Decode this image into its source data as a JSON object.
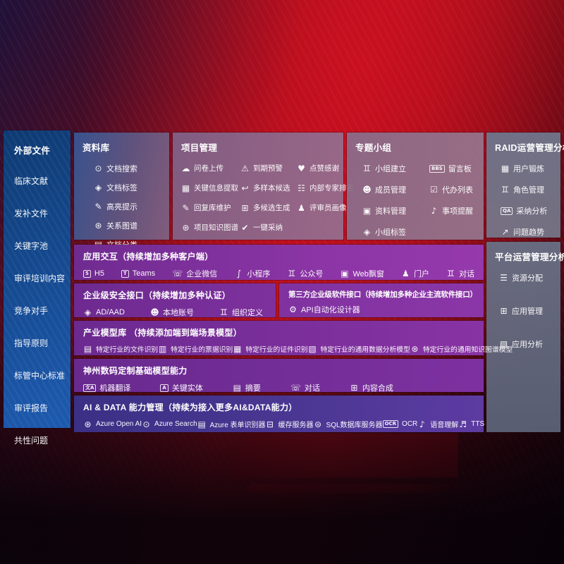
{
  "colors": {
    "background_red": "#b50e1c",
    "sidebar_blue": "#154a90",
    "panel_mauve": "#8a6f8e",
    "panel_slate": "#6e7689",
    "band_purple": "#7e31a0",
    "band_indigo": "#43338c",
    "text": "#ffffff"
  },
  "sidebar": {
    "title": "外部文件",
    "items": [
      "临床文献",
      "发补文件",
      "关键字池",
      "审评培训内容",
      "竞争对手",
      "指导原则",
      "标管中心标准",
      "审评报告",
      "共性问题"
    ]
  },
  "panels": {
    "library": {
      "title": "资料库",
      "items": [
        {
          "label": "文档搜索",
          "icon": "doc-search-icon"
        },
        {
          "label": "文档标签",
          "icon": "doc-tag-icon"
        },
        {
          "label": "高亮提示",
          "icon": "highlight-pen-icon"
        },
        {
          "label": "关系图谱",
          "icon": "relation-graph-icon"
        },
        {
          "label": "文档分类",
          "icon": "doc-category-icon"
        }
      ]
    },
    "project": {
      "title": "项目管理",
      "items": [
        {
          "label": "问卷上传",
          "icon": "cloud-upload-icon"
        },
        {
          "label": "到期预警",
          "icon": "alarm-icon"
        },
        {
          "label": "点赞感谢",
          "icon": "thumbs-up-icon"
        },
        {
          "label": "关键信息提取",
          "icon": "info-extract-icon"
        },
        {
          "label": "多样本候选",
          "icon": "reply-arrow-icon"
        },
        {
          "label": "内部专家排名",
          "icon": "ranking-icon"
        },
        {
          "label": "回复库维护",
          "icon": "pen-icon"
        },
        {
          "label": "多候选生成",
          "icon": "generate-icon"
        },
        {
          "label": "评审员画像",
          "icon": "person-icon"
        },
        {
          "label": "项目知识图谱",
          "icon": "knowledge-graph-icon"
        },
        {
          "label": "一键采纳",
          "icon": "adopt-check-icon"
        }
      ]
    },
    "topic": {
      "title": "专题小组",
      "items": [
        {
          "label": "小组建立",
          "icon": "group-icon"
        },
        {
          "label": "留言板",
          "icon": "bbs-icon"
        },
        {
          "label": "成员管理",
          "icon": "member-icon"
        },
        {
          "label": "代办列表",
          "icon": "todo-list-icon"
        },
        {
          "label": "资料管理",
          "icon": "album-icon"
        },
        {
          "label": "事项提醒",
          "icon": "bell-icon"
        },
        {
          "label": "小组标签",
          "icon": "tag-icon"
        }
      ]
    },
    "raid": {
      "title": "RAID运营管理分析",
      "items": [
        {
          "label": "用户锻炼",
          "icon": "user-card-icon"
        },
        {
          "label": "角色管理",
          "icon": "roles-icon"
        },
        {
          "label": "采纳分析",
          "icon": "qa-chat-icon"
        },
        {
          "label": "问题趋势",
          "icon": "trend-chart-icon"
        }
      ]
    },
    "platform": {
      "title": "平台运营管理分析",
      "items": [
        {
          "label": "资源分配",
          "icon": "resource-list-icon"
        },
        {
          "label": "应用管理",
          "icon": "app-grid-icon"
        },
        {
          "label": "应用分析",
          "icon": "app-analysis-icon"
        }
      ]
    }
  },
  "bands": {
    "interaction": {
      "title": "应用交互（持续增加多种客户端）",
      "items": [
        {
          "label": "H5",
          "icon": "h5-icon"
        },
        {
          "label": "Teams",
          "icon": "teams-icon"
        },
        {
          "label": "企业微信",
          "icon": "wechat-work-icon"
        },
        {
          "label": "小程序",
          "icon": "miniprogram-icon"
        },
        {
          "label": "公众号",
          "icon": "official-account-icon"
        },
        {
          "label": "Web飘窗",
          "icon": "web-popup-icon"
        },
        {
          "label": "门户",
          "icon": "portal-icon"
        },
        {
          "label": "对话",
          "icon": "dialog-people-icon"
        }
      ]
    },
    "security": {
      "title": "企业级安全接口（持续增加多种认证）",
      "items": [
        {
          "label": "AD/AAD",
          "icon": "ad-aad-icon"
        },
        {
          "label": "本地账号",
          "icon": "local-account-icon"
        },
        {
          "label": "组织定义",
          "icon": "org-define-icon"
        }
      ]
    },
    "thirdparty": {
      "title": "第三方企业级软件接口（持续增加多种企业主流软件接口）",
      "items": [
        {
          "label": "API自动化设计器",
          "icon": "api-gear-icon"
        }
      ]
    },
    "industry": {
      "title": "产业模型库 （持续添加端到端场景模型）",
      "items": [
        {
          "label": "特定行业的文件识别",
          "icon": "file-recognition-icon"
        },
        {
          "label": "特定行业的票据识别",
          "icon": "invoice-recognition-icon"
        },
        {
          "label": "特定行业的证件识别",
          "icon": "certificate-recognition-icon"
        },
        {
          "label": "特定行业的通用数据分析模型",
          "icon": "data-analysis-model-icon"
        },
        {
          "label": "特定行业的通用知识图谱模型",
          "icon": "knowledge-graph-model-icon"
        }
      ]
    },
    "basemodels": {
      "title": "神州数码定制基础模型能力",
      "items": [
        {
          "label": "机器翻译",
          "icon": "translate-icon"
        },
        {
          "label": "关键实体",
          "icon": "entity-shield-icon"
        },
        {
          "label": "摘要",
          "icon": "summary-doc-icon"
        },
        {
          "label": "对话",
          "icon": "chat-bubble-icon"
        },
        {
          "label": "内容合成",
          "icon": "compose-icon"
        }
      ]
    },
    "aidata": {
      "title": "AI & DATA 能力管理（持续为接入更多AI&DATA能力）",
      "items": [
        {
          "label": "Azure Open AI",
          "icon": "openai-icon"
        },
        {
          "label": "Azure Search",
          "icon": "azure-search-icon"
        },
        {
          "label": "Azure 表单识别器",
          "icon": "form-recognizer-icon"
        },
        {
          "label": "缓存服务器",
          "icon": "cache-server-icon"
        },
        {
          "label": "SQL数据库服务器",
          "icon": "sql-database-icon"
        },
        {
          "label": "OCR",
          "icon": "ocr-icon"
        },
        {
          "label": "语音理解",
          "icon": "speech-icon"
        },
        {
          "label": "TTS",
          "icon": "tts-icon"
        }
      ]
    }
  }
}
